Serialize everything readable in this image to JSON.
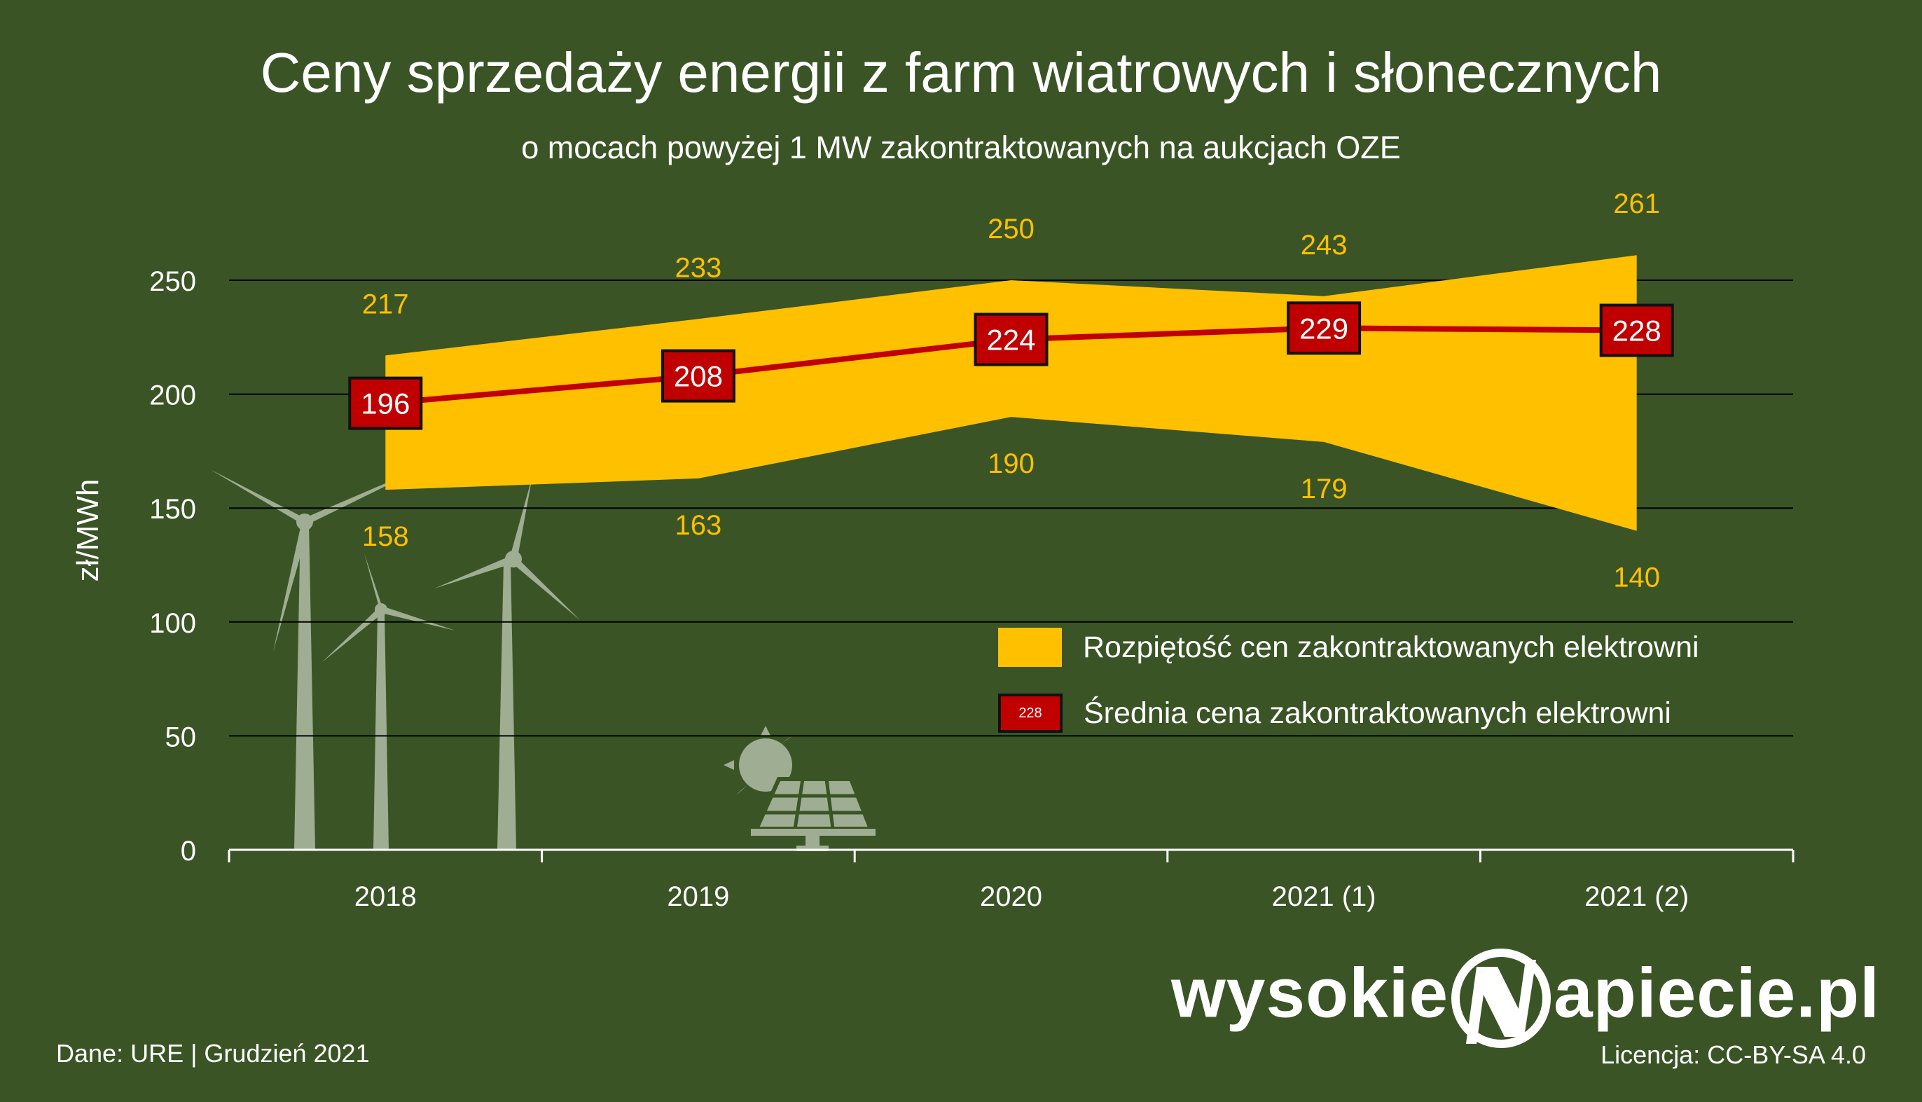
{
  "title": "Ceny sprzedaży energii z farm wiatrowych i słonecznych",
  "subtitle": "o mocach powyżej 1 MW zakontraktowanych na aukcjach OZE",
  "source": "Dane: URE  |  Grudzień 2021",
  "license": "Licencja: CC-BY-SA 4.0",
  "logo": {
    "left": "wysokie",
    "right": "apiecie.pl"
  },
  "colors": {
    "background": "#3a5426",
    "range": "#ffc000",
    "average": "#c00000",
    "label": "#ffc000"
  },
  "chart_data": {
    "type": "area",
    "categories": [
      "2018",
      "2019",
      "2020",
      "2021 (1)",
      "2021 (2)"
    ],
    "ylabel": "zł/MWh",
    "ylim": [
      0,
      250
    ],
    "yticks": [
      0,
      50,
      100,
      150,
      200,
      250
    ],
    "ytick_labels": [
      "0",
      "50",
      "100",
      "150",
      "200",
      "250"
    ],
    "grid": true,
    "legend_position": "right",
    "series": [
      {
        "name": "Rozpiętość cen zakontraktowanych elektrowni",
        "type": "range",
        "high": [
          217,
          233,
          250,
          243,
          261
        ],
        "low": [
          158,
          163,
          190,
          179,
          140
        ]
      },
      {
        "name": "Średnia cena zakontraktowanych elektrowni",
        "type": "line",
        "values": [
          196,
          208,
          224,
          229,
          228
        ]
      }
    ],
    "high_labels": [
      "217",
      "233",
      "250",
      "243",
      "261"
    ],
    "low_labels": [
      "158",
      "163",
      "190",
      "179",
      "140"
    ],
    "avg_labels": [
      "196",
      "208",
      "224",
      "229",
      "228"
    ],
    "legend_sample": "228"
  }
}
